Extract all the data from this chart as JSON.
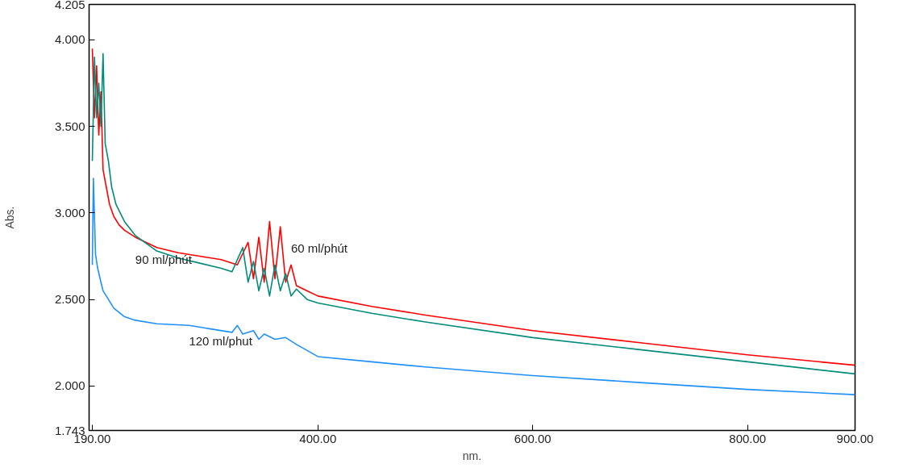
{
  "chart_data": {
    "type": "line",
    "xlabel": "nm.",
    "ylabel": "Abs.",
    "xlim": [
      187,
      900
    ],
    "ylim": [
      1.743,
      4.205
    ],
    "xticks": [
      {
        "value": 190,
        "label": "190.00"
      },
      {
        "value": 400,
        "label": "400.00"
      },
      {
        "value": 600,
        "label": "600.00"
      },
      {
        "value": 800,
        "label": "800.00"
      },
      {
        "value": 900,
        "label": "900.00"
      }
    ],
    "yticks": [
      {
        "value": 1.743,
        "label": "1.743"
      },
      {
        "value": 2.0,
        "label": "2.000"
      },
      {
        "value": 2.5,
        "label": "2.500"
      },
      {
        "value": 3.0,
        "label": "3.000"
      },
      {
        "value": 3.5,
        "label": "3.500"
      },
      {
        "value": 4.0,
        "label": "4.000"
      },
      {
        "value": 4.205,
        "label": "4.205"
      }
    ],
    "grid": false,
    "marker": "none",
    "line_style": "solid",
    "series": [
      {
        "name": "60 ml/phút",
        "color": "#ff0000",
        "x": [
          190,
          192,
          194,
          196,
          198,
          200,
          203,
          206,
          210,
          215,
          220,
          230,
          250,
          270,
          290,
          310,
          325,
          335,
          340,
          345,
          350,
          355,
          360,
          365,
          370,
          375,
          380,
          390,
          400,
          450,
          500,
          600,
          700,
          800,
          900
        ],
        "values": [
          3.95,
          3.55,
          3.85,
          3.45,
          3.7,
          3.25,
          3.15,
          3.05,
          2.98,
          2.93,
          2.9,
          2.86,
          2.8,
          2.77,
          2.75,
          2.73,
          2.7,
          2.83,
          2.62,
          2.86,
          2.6,
          2.95,
          2.62,
          2.92,
          2.6,
          2.7,
          2.58,
          2.55,
          2.52,
          2.46,
          2.41,
          2.32,
          2.25,
          2.18,
          2.12
        ]
      },
      {
        "name": "90 ml/phút",
        "color": "#008b7a",
        "x": [
          190,
          192,
          194,
          196,
          198,
          200,
          202,
          205,
          208,
          212,
          220,
          230,
          250,
          270,
          290,
          310,
          320,
          330,
          335,
          340,
          345,
          350,
          355,
          360,
          365,
          370,
          375,
          380,
          390,
          400,
          450,
          500,
          600,
          700,
          800,
          900
        ],
        "values": [
          3.3,
          3.9,
          3.55,
          3.75,
          3.5,
          3.92,
          3.4,
          3.3,
          3.15,
          3.05,
          2.95,
          2.87,
          2.78,
          2.74,
          2.71,
          2.68,
          2.66,
          2.8,
          2.6,
          2.72,
          2.55,
          2.68,
          2.52,
          2.7,
          2.55,
          2.65,
          2.52,
          2.56,
          2.5,
          2.48,
          2.42,
          2.37,
          2.28,
          2.21,
          2.14,
          2.07
        ]
      },
      {
        "name": "120 ml/phut",
        "color": "#1e90ff",
        "x": [
          190,
          191,
          193,
          195,
          198,
          200,
          205,
          210,
          220,
          230,
          250,
          280,
          300,
          320,
          325,
          330,
          340,
          345,
          350,
          360,
          370,
          380,
          400,
          450,
          500,
          600,
          700,
          800,
          900
        ],
        "values": [
          2.7,
          3.2,
          2.76,
          2.68,
          2.6,
          2.55,
          2.5,
          2.45,
          2.4,
          2.38,
          2.36,
          2.35,
          2.33,
          2.31,
          2.35,
          2.3,
          2.32,
          2.27,
          2.3,
          2.27,
          2.28,
          2.24,
          2.17,
          2.14,
          2.11,
          2.06,
          2.02,
          1.98,
          1.95
        ]
      }
    ]
  }
}
